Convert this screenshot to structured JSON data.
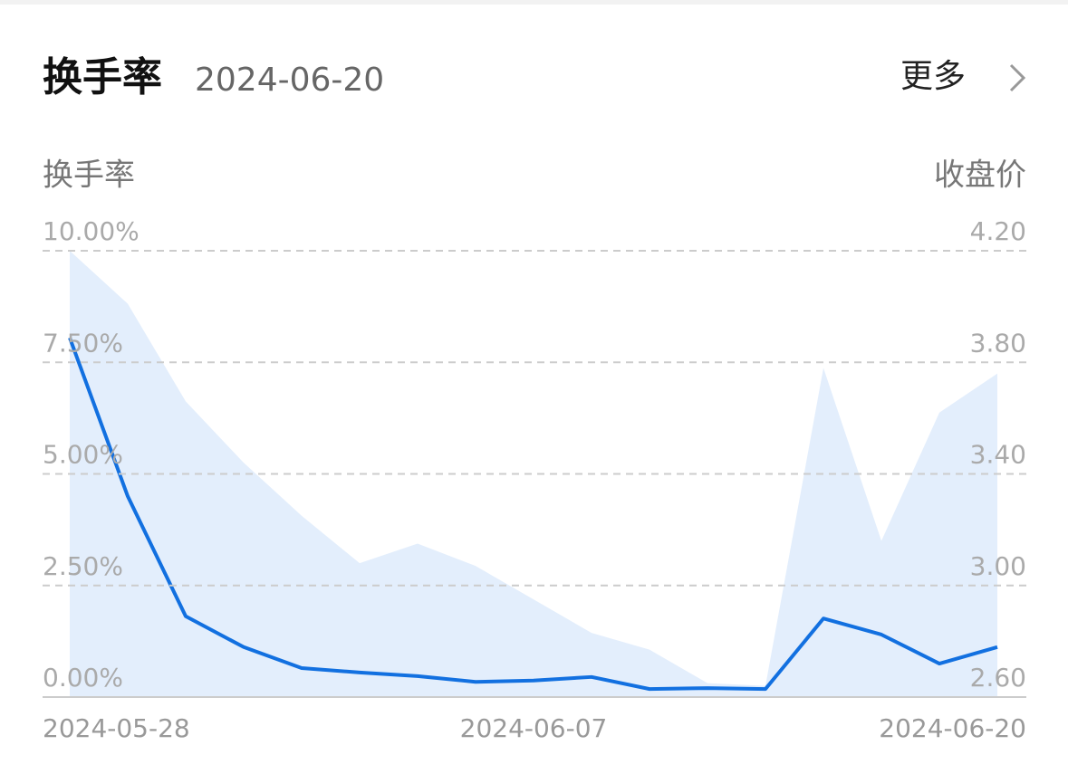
{
  "chart_data": {
    "type": "line",
    "title": "换手率",
    "subtitle": "2024-06-20",
    "more": "更多",
    "y_label": "换手率",
    "y2_label": "收盘价",
    "x": [
      "2024-05-28",
      null,
      null,
      null,
      null,
      null,
      null,
      null,
      "2024-06-07",
      null,
      null,
      null,
      null,
      null,
      null,
      null,
      "2024-06-20"
    ],
    "series": [
      {
        "type": "area",
        "axis": "y2",
        "color": "#e3eefc",
        "values": [
          4.2,
          4.01,
          3.66,
          3.44,
          3.25,
          3.08,
          3.15,
          3.07,
          2.95,
          2.83,
          2.77,
          2.65,
          2.64,
          3.78,
          3.16,
          3.62,
          3.76
        ]
      },
      {
        "type": "line",
        "color": "#1270e0",
        "values": [
          8.05,
          4.5,
          1.81,
          1.12,
          0.65,
          0.55,
          0.47,
          0.34,
          0.37,
          0.45,
          0.18,
          0.2,
          0.18,
          1.76,
          1.4,
          0.75,
          1.12
        ]
      }
    ],
    "ylim": [
      0,
      10
    ],
    "yticks": [
      {
        "value": 0,
        "label": "0.00%"
      },
      {
        "value": 2.5,
        "label": "2.50%"
      },
      {
        "value": 5,
        "label": "5.00%"
      },
      {
        "value": 7.5,
        "label": "7.50%"
      },
      {
        "value": 10,
        "label": "10.00%"
      }
    ],
    "y2lim": [
      2.6,
      4.2
    ],
    "y2ticks": [
      {
        "value": 2.6,
        "label": "2.60"
      },
      {
        "value": 3.0,
        "label": "3.00"
      },
      {
        "value": 3.4,
        "label": "3.40"
      },
      {
        "value": 3.8,
        "label": "3.80"
      },
      {
        "value": 4.2,
        "label": "4.20"
      }
    ],
    "grid": true
  }
}
